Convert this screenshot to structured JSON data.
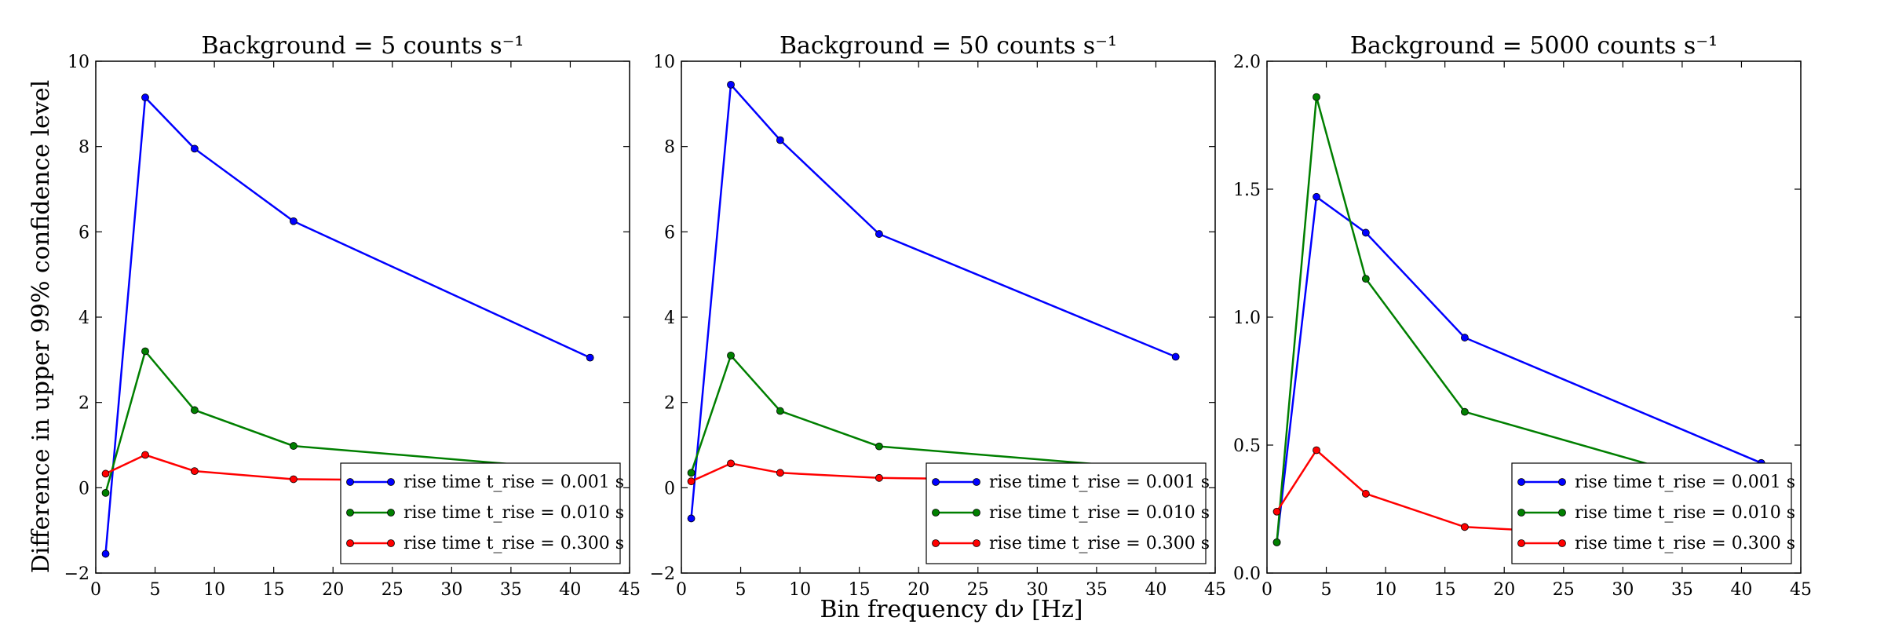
{
  "figure": {
    "ylabel": "Difference in upper 99% confidence level",
    "xlabel": "Bin frequency dν [Hz]"
  },
  "chart_data": [
    {
      "type": "line",
      "title": "Background = 5 counts s⁻¹",
      "xlim": [
        0,
        45
      ],
      "ylim": [
        -2,
        10
      ],
      "xticks": [
        0,
        5,
        10,
        15,
        20,
        25,
        30,
        35,
        40,
        45
      ],
      "yticks": [
        -2,
        0,
        2,
        4,
        6,
        8,
        10
      ],
      "xtick_labels": [
        "0",
        "5",
        "10",
        "15",
        "20",
        "25",
        "30",
        "35",
        "40",
        "45"
      ],
      "ytick_labels": [
        "−2",
        "0",
        "2",
        "4",
        "6",
        "8",
        "10"
      ],
      "grid": false,
      "legend": "lower-right",
      "x": [
        0.83,
        4.17,
        8.33,
        16.67,
        41.67
      ],
      "series": [
        {
          "name": "rise time t_rise = 0.001 s",
          "color": "#0000ff",
          "values": [
            -1.55,
            9.15,
            7.95,
            6.25,
            3.05
          ]
        },
        {
          "name": "rise time t_rise = 0.010 s",
          "color": "#007f00",
          "values": [
            -0.12,
            3.2,
            1.82,
            0.98,
            0.4
          ]
        },
        {
          "name": "rise time t_rise = 0.300 s",
          "color": "#ff0000",
          "values": [
            0.33,
            0.77,
            0.39,
            0.2,
            0.15
          ]
        }
      ]
    },
    {
      "type": "line",
      "title": "Background = 50 counts s⁻¹",
      "xlim": [
        0,
        45
      ],
      "ylim": [
        -2,
        10
      ],
      "xticks": [
        0,
        5,
        10,
        15,
        20,
        25,
        30,
        35,
        40,
        45
      ],
      "yticks": [
        -2,
        0,
        2,
        4,
        6,
        8,
        10
      ],
      "xtick_labels": [
        "0",
        "5",
        "10",
        "15",
        "20",
        "25",
        "30",
        "35",
        "40",
        "45"
      ],
      "ytick_labels": [
        "−2",
        "0",
        "2",
        "4",
        "6",
        "8",
        "10"
      ],
      "grid": false,
      "legend": "lower-right",
      "x": [
        0.83,
        4.17,
        8.33,
        16.67,
        41.67
      ],
      "series": [
        {
          "name": "rise time t_rise = 0.001 s",
          "color": "#0000ff",
          "values": [
            -0.72,
            9.45,
            8.15,
            5.95,
            3.07
          ]
        },
        {
          "name": "rise time t_rise = 0.010 s",
          "color": "#007f00",
          "values": [
            0.35,
            3.1,
            1.8,
            0.97,
            0.4
          ]
        },
        {
          "name": "rise time t_rise = 0.300 s",
          "color": "#ff0000",
          "values": [
            0.15,
            0.57,
            0.35,
            0.23,
            0.15
          ]
        }
      ]
    },
    {
      "type": "line",
      "title": "Background = 5000 counts s⁻¹",
      "xlim": [
        0,
        45
      ],
      "ylim": [
        0,
        2
      ],
      "xticks": [
        0,
        5,
        10,
        15,
        20,
        25,
        30,
        35,
        40,
        45
      ],
      "yticks": [
        0,
        0.5,
        1,
        1.5,
        2
      ],
      "xtick_labels": [
        "0",
        "5",
        "10",
        "15",
        "20",
        "25",
        "30",
        "35",
        "40",
        "45"
      ],
      "ytick_labels": [
        "0.0",
        "0.5",
        "1.0",
        "1.5",
        "2.0"
      ],
      "grid": false,
      "legend": "lower-right",
      "x": [
        0.83,
        4.17,
        8.33,
        16.67,
        41.67
      ],
      "series": [
        {
          "name": "rise time t_rise = 0.001 s",
          "color": "#0000ff",
          "values": [
            0.12,
            1.47,
            1.33,
            0.92,
            0.43
          ]
        },
        {
          "name": "rise time t_rise = 0.010 s",
          "color": "#007f00",
          "values": [
            0.12,
            1.86,
            1.15,
            0.63,
            0.3
          ]
        },
        {
          "name": "rise time t_rise = 0.300 s",
          "color": "#ff0000",
          "values": [
            0.24,
            0.48,
            0.31,
            0.18,
            0.12
          ]
        }
      ]
    }
  ]
}
